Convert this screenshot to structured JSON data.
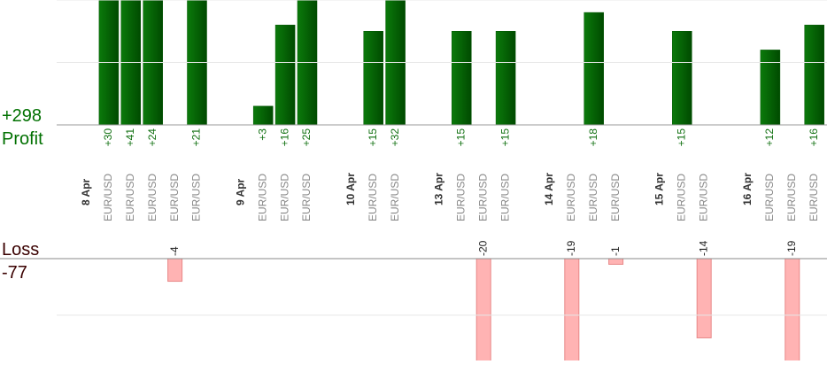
{
  "chart_data": {
    "type": "bar",
    "profit_label": "Profit",
    "profit_total": "+298",
    "loss_label": "Loss",
    "loss_total": "-77",
    "categories": [
      "8 Apr",
      "EUR/USD",
      "EUR/USD",
      "EUR/USD",
      "EUR/USD",
      "EUR/USD",
      null,
      "9 Apr",
      "EUR/USD",
      "EUR/USD",
      "EUR/USD",
      null,
      "10 Apr",
      "EUR/USD",
      "EUR/USD",
      null,
      "13 Apr",
      "EUR/USD",
      "EUR/USD",
      "EUR/USD",
      null,
      "14 Apr",
      "EUR/USD",
      "EUR/USD",
      "EUR/USD",
      null,
      "15 Apr",
      "EUR/USD",
      "EUR/USD",
      null,
      "16 Apr",
      "EUR/USD",
      "EUR/USD",
      "EUR/USD"
    ],
    "values": [
      null,
      30,
      41,
      24,
      -4,
      21,
      null,
      null,
      3,
      16,
      25,
      null,
      null,
      15,
      32,
      null,
      null,
      15,
      -20,
      15,
      null,
      null,
      -19,
      18,
      -1,
      null,
      null,
      15,
      -14,
      null,
      null,
      12,
      -19,
      16
    ],
    "value_labels": [
      null,
      "+30",
      "+41",
      "+24",
      null,
      "+21",
      null,
      null,
      "+3",
      "+16",
      "+25",
      null,
      null,
      "+15",
      "+32",
      null,
      null,
      "+15",
      null,
      "+15",
      null,
      null,
      null,
      "+18",
      null,
      null,
      null,
      "+15",
      null,
      null,
      null,
      "+12",
      null,
      "+16"
    ],
    "profit_color": "#005500",
    "loss_color": "#ffb3b3",
    "ylim": [
      0,
      20
    ],
    "yticks": [
      0,
      10,
      20
    ],
    "y2lim": [
      -18,
      0
    ],
    "y2ticks": [
      -10,
      0
    ]
  }
}
